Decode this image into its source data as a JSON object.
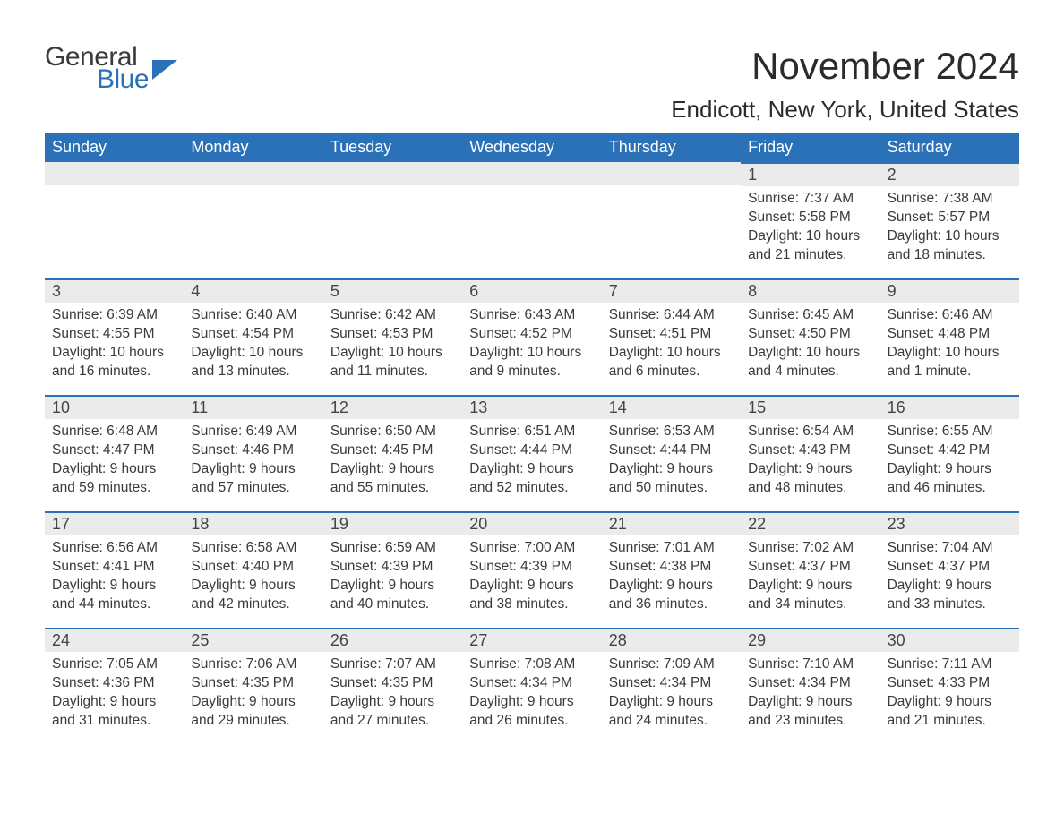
{
  "brand": {
    "line1": "General",
    "line2": "Blue",
    "flag_color": "#2a71b8"
  },
  "title": "November 2024",
  "location": "Endicott, New York, United States",
  "colors": {
    "header_bg": "#2a71b8",
    "header_text": "#ffffff",
    "daynum_bg": "#ebebeb",
    "daynum_border": "#2a71b8",
    "body_text": "#3a3a3a",
    "page_bg": "#ffffff"
  },
  "font": {
    "family": "Arial",
    "title_size_pt": 32,
    "location_size_pt": 20,
    "header_size_pt": 14,
    "body_size_pt": 12
  },
  "layout": {
    "columns": 7,
    "rows": 5,
    "leading_blank_cells": 5
  },
  "weekdays": [
    "Sunday",
    "Monday",
    "Tuesday",
    "Wednesday",
    "Thursday",
    "Friday",
    "Saturday"
  ],
  "days": [
    {
      "n": 1,
      "sunrise": "7:37 AM",
      "sunset": "5:58 PM",
      "daylight": "10 hours and 21 minutes."
    },
    {
      "n": 2,
      "sunrise": "7:38 AM",
      "sunset": "5:57 PM",
      "daylight": "10 hours and 18 minutes."
    },
    {
      "n": 3,
      "sunrise": "6:39 AM",
      "sunset": "4:55 PM",
      "daylight": "10 hours and 16 minutes."
    },
    {
      "n": 4,
      "sunrise": "6:40 AM",
      "sunset": "4:54 PM",
      "daylight": "10 hours and 13 minutes."
    },
    {
      "n": 5,
      "sunrise": "6:42 AM",
      "sunset": "4:53 PM",
      "daylight": "10 hours and 11 minutes."
    },
    {
      "n": 6,
      "sunrise": "6:43 AM",
      "sunset": "4:52 PM",
      "daylight": "10 hours and 9 minutes."
    },
    {
      "n": 7,
      "sunrise": "6:44 AM",
      "sunset": "4:51 PM",
      "daylight": "10 hours and 6 minutes."
    },
    {
      "n": 8,
      "sunrise": "6:45 AM",
      "sunset": "4:50 PM",
      "daylight": "10 hours and 4 minutes."
    },
    {
      "n": 9,
      "sunrise": "6:46 AM",
      "sunset": "4:48 PM",
      "daylight": "10 hours and 1 minute."
    },
    {
      "n": 10,
      "sunrise": "6:48 AM",
      "sunset": "4:47 PM",
      "daylight": "9 hours and 59 minutes."
    },
    {
      "n": 11,
      "sunrise": "6:49 AM",
      "sunset": "4:46 PM",
      "daylight": "9 hours and 57 minutes."
    },
    {
      "n": 12,
      "sunrise": "6:50 AM",
      "sunset": "4:45 PM",
      "daylight": "9 hours and 55 minutes."
    },
    {
      "n": 13,
      "sunrise": "6:51 AM",
      "sunset": "4:44 PM",
      "daylight": "9 hours and 52 minutes."
    },
    {
      "n": 14,
      "sunrise": "6:53 AM",
      "sunset": "4:44 PM",
      "daylight": "9 hours and 50 minutes."
    },
    {
      "n": 15,
      "sunrise": "6:54 AM",
      "sunset": "4:43 PM",
      "daylight": "9 hours and 48 minutes."
    },
    {
      "n": 16,
      "sunrise": "6:55 AM",
      "sunset": "4:42 PM",
      "daylight": "9 hours and 46 minutes."
    },
    {
      "n": 17,
      "sunrise": "6:56 AM",
      "sunset": "4:41 PM",
      "daylight": "9 hours and 44 minutes."
    },
    {
      "n": 18,
      "sunrise": "6:58 AM",
      "sunset": "4:40 PM",
      "daylight": "9 hours and 42 minutes."
    },
    {
      "n": 19,
      "sunrise": "6:59 AM",
      "sunset": "4:39 PM",
      "daylight": "9 hours and 40 minutes."
    },
    {
      "n": 20,
      "sunrise": "7:00 AM",
      "sunset": "4:39 PM",
      "daylight": "9 hours and 38 minutes."
    },
    {
      "n": 21,
      "sunrise": "7:01 AM",
      "sunset": "4:38 PM",
      "daylight": "9 hours and 36 minutes."
    },
    {
      "n": 22,
      "sunrise": "7:02 AM",
      "sunset": "4:37 PM",
      "daylight": "9 hours and 34 minutes."
    },
    {
      "n": 23,
      "sunrise": "7:04 AM",
      "sunset": "4:37 PM",
      "daylight": "9 hours and 33 minutes."
    },
    {
      "n": 24,
      "sunrise": "7:05 AM",
      "sunset": "4:36 PM",
      "daylight": "9 hours and 31 minutes."
    },
    {
      "n": 25,
      "sunrise": "7:06 AM",
      "sunset": "4:35 PM",
      "daylight": "9 hours and 29 minutes."
    },
    {
      "n": 26,
      "sunrise": "7:07 AM",
      "sunset": "4:35 PM",
      "daylight": "9 hours and 27 minutes."
    },
    {
      "n": 27,
      "sunrise": "7:08 AM",
      "sunset": "4:34 PM",
      "daylight": "9 hours and 26 minutes."
    },
    {
      "n": 28,
      "sunrise": "7:09 AM",
      "sunset": "4:34 PM",
      "daylight": "9 hours and 24 minutes."
    },
    {
      "n": 29,
      "sunrise": "7:10 AM",
      "sunset": "4:34 PM",
      "daylight": "9 hours and 23 minutes."
    },
    {
      "n": 30,
      "sunrise": "7:11 AM",
      "sunset": "4:33 PM",
      "daylight": "9 hours and 21 minutes."
    }
  ],
  "labels": {
    "sunrise": "Sunrise:",
    "sunset": "Sunset:",
    "daylight": "Daylight:"
  }
}
